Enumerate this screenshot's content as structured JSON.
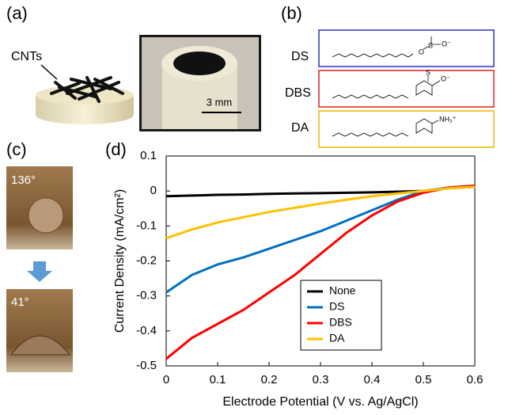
{
  "panels": {
    "a": {
      "label": "(a)",
      "cnt_label": "CNTs",
      "scale_bar": "3 mm"
    },
    "b": {
      "label": "(b)",
      "molecules": [
        {
          "name": "DS",
          "groups": [
            "O",
            "S",
            "O⁻"
          ]
        },
        {
          "name": "DBS",
          "groups": [
            "S",
            "O⁻"
          ]
        },
        {
          "name": "DA",
          "groups": [
            "NH₃⁺"
          ]
        }
      ]
    },
    "c": {
      "label": "(c)",
      "angles": [
        "136°",
        "41°"
      ]
    },
    "d": {
      "label": "(d)"
    }
  },
  "chart_data": {
    "type": "line",
    "xlabel": "Electrode Potential (V vs. Ag/AgCl)",
    "ylabel": "Current Density (mA/cm²)",
    "x": [
      0,
      0.05,
      0.1,
      0.15,
      0.2,
      0.25,
      0.3,
      0.35,
      0.4,
      0.45,
      0.5,
      0.55,
      0.6
    ],
    "series": [
      {
        "name": "None",
        "color": "#000000",
        "values": [
          -0.015,
          -0.013,
          -0.011,
          -0.01,
          -0.008,
          -0.007,
          -0.006,
          -0.005,
          -0.004,
          -0.002,
          0,
          0.008,
          0.012
        ]
      },
      {
        "name": "DS",
        "color": "#0070c0",
        "values": [
          -0.29,
          -0.24,
          -0.21,
          -0.19,
          -0.165,
          -0.14,
          -0.115,
          -0.085,
          -0.055,
          -0.025,
          0,
          0.01,
          0.015
        ]
      },
      {
        "name": "DBS",
        "color": "#ff0000",
        "values": [
          -0.48,
          -0.42,
          -0.38,
          -0.34,
          -0.29,
          -0.24,
          -0.18,
          -0.12,
          -0.07,
          -0.03,
          -0.005,
          0.01,
          0.015
        ]
      },
      {
        "name": "DA",
        "color": "#ffc000",
        "values": [
          -0.135,
          -0.11,
          -0.09,
          -0.075,
          -0.06,
          -0.048,
          -0.036,
          -0.025,
          -0.015,
          -0.007,
          0,
          0.008,
          0.012
        ]
      }
    ],
    "xlim": [
      0,
      0.6
    ],
    "xticks": [
      0,
      0.1,
      0.2,
      0.3,
      0.4,
      0.5,
      0.6
    ],
    "ylim": [
      -0.5,
      0.1
    ],
    "yticks": [
      -0.5,
      -0.4,
      -0.3,
      -0.2,
      -0.1,
      0,
      0.1
    ],
    "legend": "lower right"
  }
}
